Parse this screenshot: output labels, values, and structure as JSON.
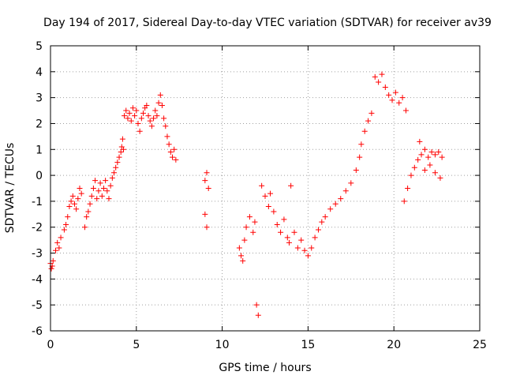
{
  "chart_data": {
    "type": "scatter",
    "title": "Day 194 of 2017, Sidereal Day-to-day VTEC variation (SDTVAR) for receiver av39",
    "xlabel": "GPS time / hours",
    "ylabel": "SDTVAR / TECUs",
    "xlim": [
      0,
      25
    ],
    "ylim": [
      -6,
      5
    ],
    "x_ticks": [
      "0",
      "5",
      "10",
      "15",
      "20",
      "25"
    ],
    "y_ticks": [
      "-6",
      "-5",
      "-4",
      "-3",
      "-2",
      "-1",
      "0",
      "1",
      "2",
      "3",
      "4",
      "5"
    ],
    "grid": true,
    "marker": "+",
    "series_color": "#ff0000",
    "series": [
      {
        "x": [
          0.0,
          0.05,
          0.1,
          0.15,
          0.3,
          0.4,
          0.5,
          0.6,
          0.8,
          0.9,
          1.0,
          1.1,
          1.2,
          1.3,
          1.4,
          1.5,
          1.6,
          1.7,
          1.8,
          2.0,
          2.1,
          2.2,
          2.3,
          2.4,
          2.5,
          2.6,
          2.7,
          2.8,
          2.9,
          3.0,
          3.1,
          3.2,
          3.3,
          3.4,
          3.5,
          3.6,
          3.7,
          3.8,
          3.9,
          4.0,
          4.1,
          4.15,
          4.2,
          4.25,
          4.3,
          4.4,
          4.5,
          4.6,
          4.7,
          4.8,
          4.9,
          5.0,
          5.1,
          5.2,
          5.3,
          5.4,
          5.5,
          5.6,
          5.7,
          5.8,
          5.9,
          6.0,
          6.1,
          6.2,
          6.3,
          6.4,
          6.5,
          6.6,
          6.7,
          6.8,
          6.9,
          7.0,
          7.1,
          7.2,
          7.3,
          9.0,
          9.1,
          9.2,
          9.0,
          9.1,
          11.0,
          11.1,
          11.2,
          11.3,
          11.4,
          11.6,
          11.8,
          11.9,
          12.0,
          12.1,
          12.3,
          12.5,
          12.7,
          12.8,
          13.0,
          13.2,
          13.4,
          13.6,
          13.8,
          13.9,
          14.0,
          14.2,
          14.4,
          14.6,
          14.8,
          15.0,
          15.2,
          15.4,
          15.6,
          15.8,
          16.0,
          16.3,
          16.6,
          16.9,
          17.2,
          17.5,
          17.8,
          18.0,
          18.1,
          18.3,
          18.5,
          18.7,
          18.9,
          19.1,
          19.3,
          19.5,
          19.7,
          19.9,
          20.1,
          20.3,
          20.5,
          20.7,
          20.6,
          20.8,
          21.0,
          21.2,
          21.4,
          21.6,
          21.8,
          22.0,
          22.2,
          22.4,
          22.6,
          22.8,
          21.5,
          21.8,
          22.1,
          22.4,
          22.7
        ],
        "y": [
          -3.4,
          -3.6,
          -3.5,
          -3.3,
          -2.9,
          -2.6,
          -2.8,
          -2.4,
          -2.1,
          -1.9,
          -1.6,
          -1.2,
          -1.0,
          -0.8,
          -1.1,
          -1.3,
          -0.9,
          -0.5,
          -0.7,
          -2.0,
          -1.6,
          -1.4,
          -1.1,
          -0.8,
          -0.5,
          -0.2,
          -0.9,
          -0.6,
          -0.3,
          -0.8,
          -0.5,
          -0.2,
          -0.6,
          -0.9,
          -0.4,
          -0.1,
          0.1,
          0.3,
          0.5,
          0.7,
          0.9,
          1.1,
          1.4,
          1.0,
          2.3,
          2.5,
          2.2,
          2.4,
          2.1,
          2.6,
          2.3,
          2.5,
          2.0,
          1.7,
          2.2,
          2.4,
          2.6,
          2.7,
          2.3,
          2.1,
          1.9,
          2.2,
          2.5,
          2.3,
          2.8,
          3.1,
          2.7,
          2.2,
          1.9,
          1.5,
          1.2,
          0.9,
          0.7,
          1.0,
          0.6,
          -0.2,
          0.1,
          -0.5,
          -1.5,
          -2.0,
          -2.8,
          -3.1,
          -3.3,
          -2.5,
          -2.0,
          -1.6,
          -2.2,
          -1.8,
          -5.0,
          -5.4,
          -0.4,
          -0.8,
          -1.2,
          -0.7,
          -1.4,
          -1.9,
          -2.2,
          -1.7,
          -2.4,
          -2.6,
          -0.4,
          -2.2,
          -2.8,
          -2.5,
          -2.9,
          -3.1,
          -2.8,
          -2.4,
          -2.1,
          -1.8,
          -1.6,
          -1.3,
          -1.1,
          -0.9,
          -0.6,
          -0.3,
          0.2,
          0.7,
          1.2,
          1.7,
          2.1,
          2.4,
          3.8,
          3.6,
          3.9,
          3.4,
          3.1,
          2.9,
          3.2,
          2.8,
          3.0,
          2.5,
          -1.0,
          -0.5,
          0.0,
          0.3,
          0.6,
          0.8,
          1.0,
          0.7,
          0.9,
          0.8,
          0.9,
          0.7,
          1.3,
          0.2,
          0.4,
          0.1,
          -0.1
        ]
      }
    ]
  }
}
